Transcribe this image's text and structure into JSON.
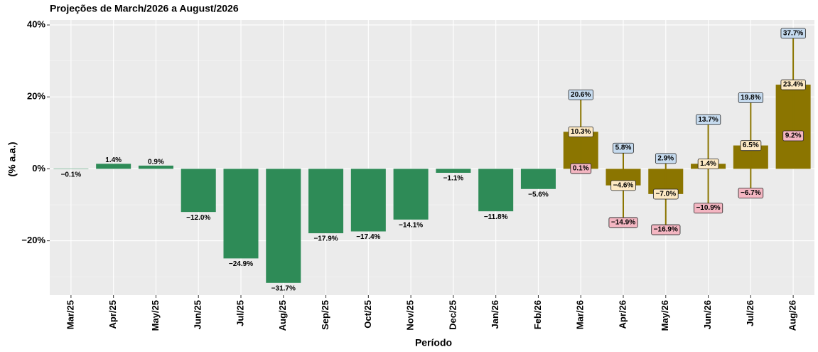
{
  "chart_data": {
    "type": "bar",
    "title": "Projeções de March/2026 a August/2026",
    "x_label": "Período",
    "y_label": "(% a.a.)",
    "categories": [
      "Mar/25",
      "Apr/25",
      "May/25",
      "Jun/25",
      "Jul/25",
      "Aug/25",
      "Sep/25",
      "Oct/25",
      "Nov/25",
      "Dec/25",
      "Jan/26",
      "Feb/26",
      "Mar/26",
      "Apr/26",
      "May/26",
      "Jun/26",
      "Jul/26",
      "Aug/26"
    ],
    "values": [
      -0.1,
      1.4,
      0.9,
      -12.0,
      -24.9,
      -31.7,
      -17.9,
      -17.4,
      -14.1,
      -1.1,
      -11.8,
      -5.6,
      10.3,
      -4.6,
      -7.0,
      1.4,
      6.5,
      23.4
    ],
    "value_labels": [
      "−0.1%",
      "1.4%",
      "0.9%",
      "−12.0%",
      "−24.9%",
      "−31.7%",
      "−17.9%",
      "−17.4%",
      "−14.1%",
      "−1.1%",
      "−11.8%",
      "−5.6%",
      "10.3%",
      "−4.6%",
      "−7.0%",
      "1.4%",
      "6.5%",
      "23.4%"
    ],
    "colors": [
      "#2e8b57",
      "#2e8b57",
      "#2e8b57",
      "#2e8b57",
      "#2e8b57",
      "#2e8b57",
      "#2e8b57",
      "#2e8b57",
      "#2e8b57",
      "#2e8b57",
      "#2e8b57",
      "#2e8b57",
      "#8b7500",
      "#8b7500",
      "#8b7500",
      "#8b7500",
      "#8b7500",
      "#8b7500"
    ],
    "upper": [
      null,
      null,
      null,
      null,
      null,
      null,
      null,
      null,
      null,
      null,
      null,
      null,
      20.6,
      5.8,
      2.9,
      13.7,
      19.8,
      37.7
    ],
    "upper_labels": [
      null,
      null,
      null,
      null,
      null,
      null,
      null,
      null,
      null,
      null,
      null,
      null,
      "20.6%",
      "5.8%",
      "2.9%",
      "13.7%",
      "19.8%",
      "37.7%"
    ],
    "lower": [
      null,
      null,
      null,
      null,
      null,
      null,
      null,
      null,
      null,
      null,
      null,
      null,
      0.1,
      -14.9,
      -16.9,
      -10.9,
      -6.7,
      9.2
    ],
    "lower_labels": [
      null,
      null,
      null,
      null,
      null,
      null,
      null,
      null,
      null,
      null,
      null,
      null,
      "0.1%",
      "−14.9%",
      "−16.9%",
      "−10.9%",
      "−6.7%",
      "9.2%"
    ],
    "ylim": [
      -35.1,
      41.4
    ],
    "yticks": [
      {
        "value": -20,
        "label": "−20%"
      },
      {
        "value": 0,
        "label": "0%"
      },
      {
        "value": 20,
        "label": "20%"
      },
      {
        "value": 40,
        "label": "40%"
      }
    ],
    "grid": true
  }
}
